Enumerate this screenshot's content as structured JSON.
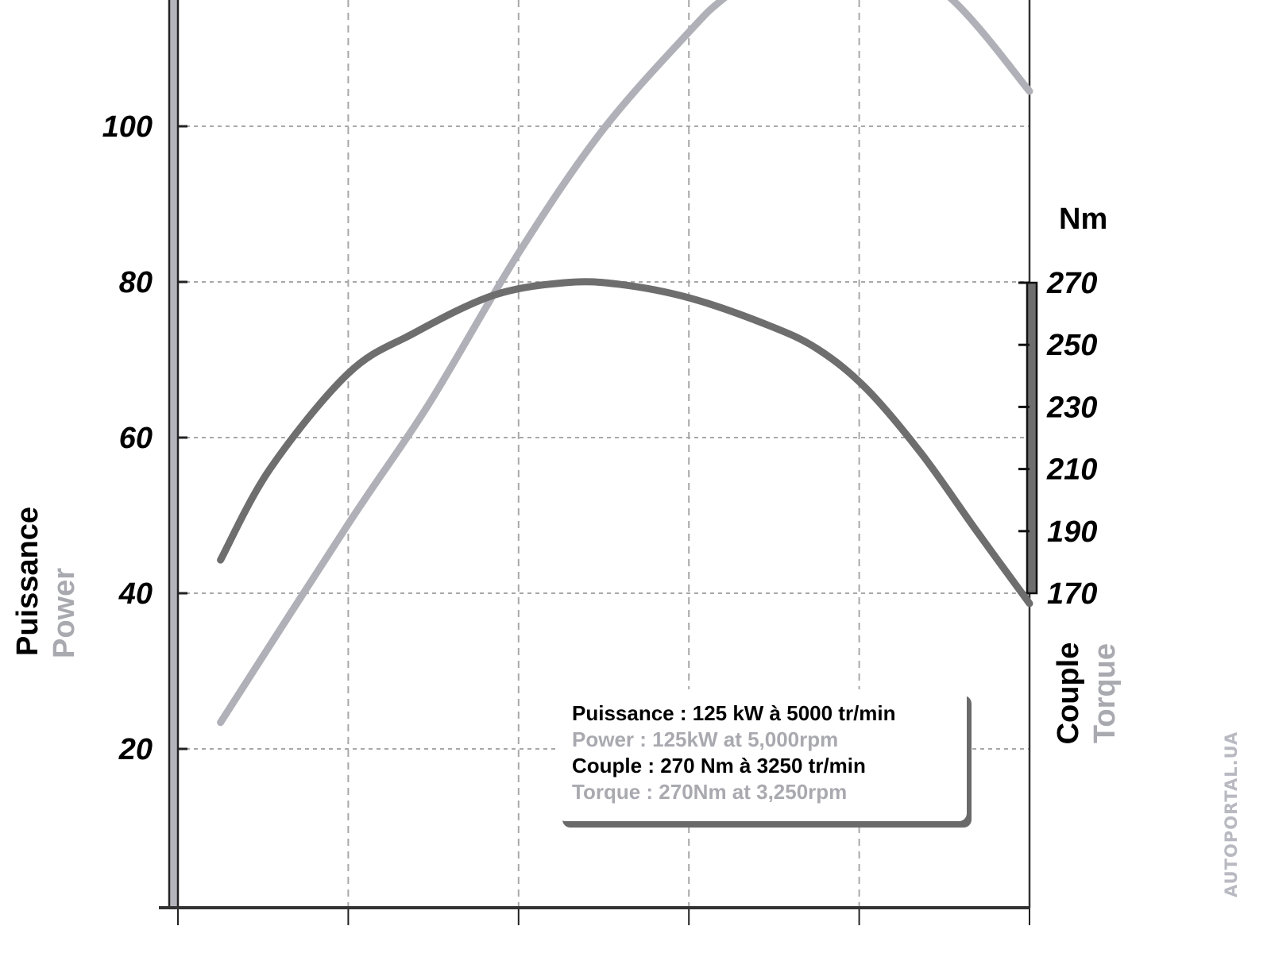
{
  "chart_data": {
    "type": "line",
    "title": "",
    "xlabel": "",
    "x_unit": "rpm",
    "xlim": [
      1000,
      6000
    ],
    "x_ticks": [
      1000,
      2000,
      3000,
      4000,
      5000,
      6000
    ],
    "y_left": {
      "label_fr": "Puissance",
      "label_en": "Power",
      "ticks": [
        "20",
        "40",
        "60",
        "80",
        "100"
      ],
      "tick_values": [
        20,
        40,
        60,
        80,
        100
      ],
      "ylim": [
        0,
        116
      ]
    },
    "y_right": {
      "unit": "Nm",
      "label_fr": "Couple",
      "label_en": "Torque",
      "ticks": [
        "170",
        "190",
        "210",
        "230",
        "250",
        "270"
      ],
      "tick_values": [
        170,
        190,
        210,
        230,
        250,
        270
      ]
    },
    "grid": true,
    "series": [
      {
        "name": "Power",
        "axis": "left",
        "color": "#b0b0b8",
        "x": [
          1250,
          2000,
          2470,
          3000,
          3490,
          4000,
          4220,
          4620,
          5000,
          5550,
          6000
        ],
        "values": [
          23.4,
          48.9,
          64.2,
          83.7,
          99.4,
          112.1,
          116.7,
          123,
          125,
          116.2,
          104.5
        ]
      },
      {
        "name": "Torque",
        "axis": "right",
        "color": "#6e6e6e",
        "x": [
          1250,
          1540,
          2000,
          2380,
          2850,
          3270,
          3590,
          4010,
          4480,
          4760,
          5040,
          5365,
          5690,
          6000
        ],
        "values": [
          180.7,
          210,
          240.8,
          253.6,
          265.9,
          270,
          269.5,
          265,
          256,
          248.5,
          236,
          215,
          190,
          166.7
        ]
      }
    ],
    "legend": {
      "placement": "bottom-center",
      "lines": [
        "Puissance : 125 kW à 5000 tr/min",
        "Power : 125kW at 5,000rpm",
        "Couple : 270 Nm à 3250 tr/min",
        "Torque : 270Nm at 3,250rpm"
      ]
    }
  },
  "watermark": "AUTOPORTAL.UA"
}
